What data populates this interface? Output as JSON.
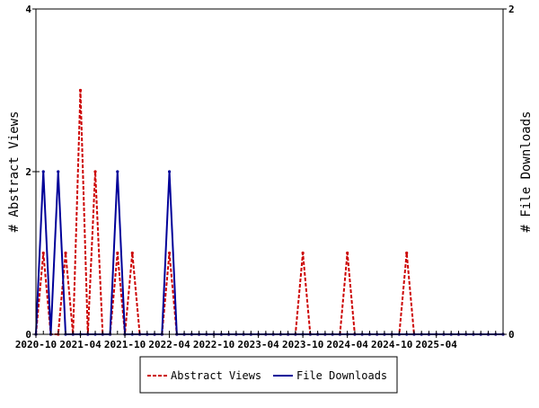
{
  "chart_data": {
    "type": "line",
    "x_axis": {
      "type": "date",
      "range": [
        "2020-10",
        "2026-01"
      ],
      "tick_labels": [
        "2020-10",
        "2021-04",
        "2021-10",
        "2022-04",
        "2022-10",
        "2023-04",
        "2023-10",
        "2024-04",
        "2024-10",
        "2025-04"
      ],
      "minor_ticks": "monthly"
    },
    "y_axis_left": {
      "label": "# Abstract Views",
      "ylim": [
        0,
        4
      ],
      "tick_labels": [
        "0",
        "2",
        "4"
      ]
    },
    "y_axis_right": {
      "label": "# File Downloads",
      "ylim": [
        0,
        2
      ],
      "tick_labels": [
        "0",
        "2"
      ]
    },
    "grid": false,
    "legend": {
      "placement": "bottom",
      "entries": [
        "Abstract Views",
        "File Downloads"
      ]
    },
    "x": [
      "2020-10",
      "2020-11",
      "2020-12",
      "2021-01",
      "2021-02",
      "2021-03",
      "2021-04",
      "2021-05",
      "2021-06",
      "2021-07",
      "2021-08",
      "2021-09",
      "2021-10",
      "2021-11",
      "2021-12",
      "2022-01",
      "2022-02",
      "2022-03",
      "2022-04",
      "2022-05",
      "2022-06",
      "2022-07",
      "2022-08",
      "2022-09",
      "2022-10",
      "2022-11",
      "2022-12",
      "2023-01",
      "2023-02",
      "2023-03",
      "2023-04",
      "2023-05",
      "2023-06",
      "2023-07",
      "2023-08",
      "2023-09",
      "2023-10",
      "2023-11",
      "2023-12",
      "2024-01",
      "2024-02",
      "2024-03",
      "2024-04",
      "2024-05",
      "2024-06",
      "2024-07",
      "2024-08",
      "2024-09",
      "2024-10",
      "2024-11",
      "2024-12",
      "2025-01",
      "2025-02",
      "2025-03",
      "2025-04",
      "2025-05",
      "2025-06",
      "2025-07",
      "2025-08",
      "2025-09",
      "2025-10",
      "2025-11",
      "2025-12",
      "2026-01"
    ],
    "series": [
      {
        "name": "Abstract Views",
        "axis": "left",
        "color": "#cc0000",
        "style": "dashed",
        "values": [
          0,
          1,
          0,
          0,
          1,
          0,
          3,
          0,
          2,
          0,
          0,
          1,
          0,
          1,
          0,
          0,
          0,
          0,
          1,
          0,
          0,
          0,
          0,
          0,
          0,
          0,
          0,
          0,
          0,
          0,
          0,
          0,
          0,
          0,
          0,
          0,
          1,
          0,
          0,
          0,
          0,
          0,
          1,
          0,
          0,
          0,
          0,
          0,
          0,
          0,
          1,
          0,
          0,
          0,
          0,
          0,
          0,
          0,
          0,
          0,
          0,
          0,
          0,
          0
        ]
      },
      {
        "name": "File Downloads",
        "axis": "right",
        "color": "#000099",
        "style": "solid",
        "values": [
          0,
          1,
          0,
          1,
          0,
          0,
          0,
          0,
          0,
          0,
          0,
          1,
          0,
          0,
          0,
          0,
          0,
          0,
          1,
          0,
          0,
          0,
          0,
          0,
          0,
          0,
          0,
          0,
          0,
          0,
          0,
          0,
          0,
          0,
          0,
          0,
          0,
          0,
          0,
          0,
          0,
          0,
          0,
          0,
          0,
          0,
          0,
          0,
          0,
          0,
          0,
          0,
          0,
          0,
          0,
          0,
          0,
          0,
          0,
          0,
          0,
          0,
          0,
          0
        ]
      }
    ]
  }
}
